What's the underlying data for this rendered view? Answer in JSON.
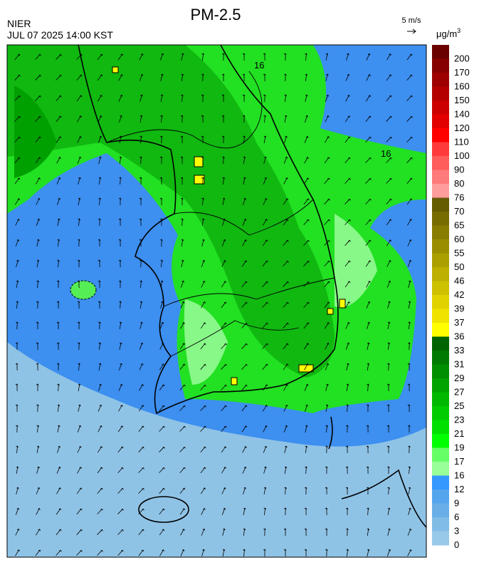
{
  "header": {
    "title": "PM-2.5",
    "agency": "NIER",
    "datetime": "JUL 07 2025 14:00 KST"
  },
  "wind_legend": {
    "label": "5 m/s"
  },
  "colorbar": {
    "unit": "μg/m",
    "unit_sup": "3",
    "labels": [
      "200",
      "170",
      "160",
      "150",
      "140",
      "120",
      "110",
      "100",
      "90",
      "80",
      "76",
      "70",
      "65",
      "60",
      "55",
      "50",
      "46",
      "42",
      "39",
      "37",
      "36",
      "33",
      "31",
      "29",
      "27",
      "25",
      "23",
      "21",
      "19",
      "17",
      "16",
      "12",
      "9",
      "6",
      "3",
      "0"
    ],
    "colors": [
      "#6b0000",
      "#870000",
      "#9e0000",
      "#b50000",
      "#cc0000",
      "#e30000",
      "#ff0000",
      "#ff3a3a",
      "#ff5c5c",
      "#ff7a7a",
      "#ff9c9c",
      "#655b00",
      "#776c00",
      "#887d00",
      "#9a8e00",
      "#ab9f00",
      "#bdb000",
      "#cec100",
      "#dfd200",
      "#f0e300",
      "#ffff00",
      "#006400",
      "#007a00",
      "#008f00",
      "#00a300",
      "#00b800",
      "#00cc00",
      "#00e000",
      "#00ff00",
      "#66ff66",
      "#99ff99",
      "#3399ff",
      "#55a5ee",
      "#6aaee8",
      "#80bce6",
      "#99c9e8"
    ]
  },
  "contour_labels": [
    "16",
    "16"
  ]
}
